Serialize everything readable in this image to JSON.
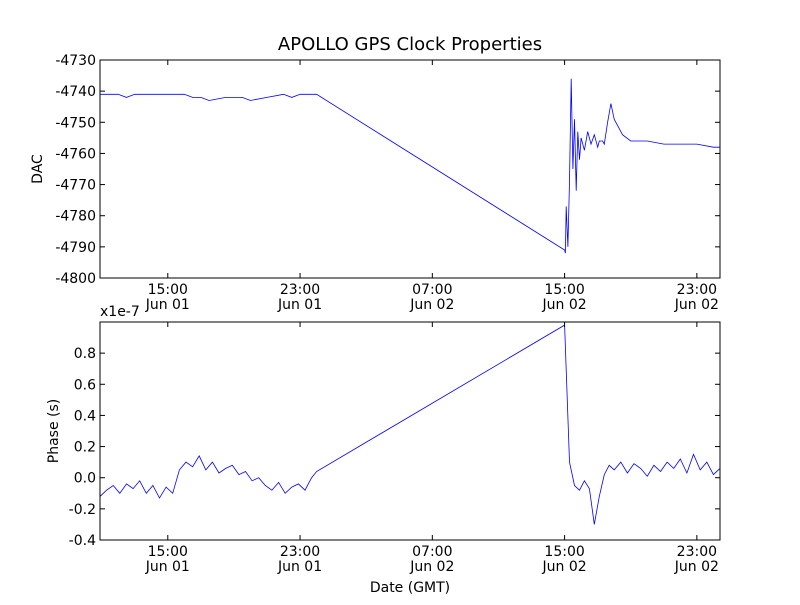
{
  "title": "APOLLO GPS Clock Properties",
  "chart_data": [
    {
      "type": "line",
      "ylabel": "DAC",
      "xlabel": "",
      "ylim": [
        -4800,
        -4730
      ],
      "yticks": [
        -4800,
        -4790,
        -4780,
        -4770,
        -4760,
        -4750,
        -4740,
        -4730
      ],
      "xlim_hours": [
        10.9,
        48.4
      ],
      "xticks": [
        {
          "h": 15,
          "time": "15:00",
          "date": "Jun 01"
        },
        {
          "h": 23,
          "time": "23:00",
          "date": "Jun 01"
        },
        {
          "h": 31,
          "time": "07:00",
          "date": "Jun 02"
        },
        {
          "h": 39,
          "time": "15:00",
          "date": "Jun 02"
        },
        {
          "h": 47,
          "time": "23:00",
          "date": "Jun 02"
        }
      ],
      "x_hours": [
        10.9,
        12.0,
        12.5,
        13.0,
        14.0,
        15.0,
        16.0,
        16.5,
        17.0,
        17.5,
        18.5,
        19.5,
        20.0,
        21.0,
        22.0,
        22.5,
        23.0,
        23.5,
        24.0,
        39.0,
        39.05,
        39.1,
        39.2,
        39.3,
        39.4,
        39.5,
        39.6,
        39.7,
        39.8,
        39.9,
        40.0,
        40.2,
        40.4,
        40.6,
        40.8,
        41.0,
        41.1,
        41.2,
        41.3,
        41.4,
        41.6,
        41.8,
        42.0,
        42.5,
        43.0,
        44.0,
        45.0,
        46.0,
        47.0,
        48.0,
        48.4
      ],
      "y": [
        -4741,
        -4741,
        -4742,
        -4741,
        -4741,
        -4741,
        -4741,
        -4742,
        -4742,
        -4743,
        -4742,
        -4742,
        -4743,
        -4742,
        -4741,
        -4742,
        -4741,
        -4741,
        -4741,
        -4791,
        -4792,
        -4777,
        -4790,
        -4769,
        -4736,
        -4765,
        -4749,
        -4772,
        -4753,
        -4762,
        -4755,
        -4759,
        -4753,
        -4757,
        -4754,
        -4758,
        -4756,
        -4756,
        -4756,
        -4757,
        -4750,
        -4744,
        -4749,
        -4754,
        -4756,
        -4756,
        -4757,
        -4757,
        -4757,
        -4758,
        -4758
      ]
    },
    {
      "type": "line",
      "ylabel": "Phase (s)",
      "xlabel": "Date (GMT)",
      "offset_label": "x1e-7",
      "ylim": [
        -0.4,
        1.0
      ],
      "yticks": [
        -0.4,
        -0.2,
        0.0,
        0.2,
        0.4,
        0.6,
        0.8
      ],
      "xlim_hours": [
        10.9,
        48.4
      ],
      "xticks": [
        {
          "h": 15,
          "time": "15:00",
          "date": "Jun 01"
        },
        {
          "h": 23,
          "time": "23:00",
          "date": "Jun 01"
        },
        {
          "h": 31,
          "time": "07:00",
          "date": "Jun 02"
        },
        {
          "h": 39,
          "time": "15:00",
          "date": "Jun 02"
        },
        {
          "h": 47,
          "time": "23:00",
          "date": "Jun 02"
        }
      ],
      "x_hours": [
        10.9,
        11.3,
        11.7,
        12.1,
        12.5,
        12.9,
        13.3,
        13.7,
        14.1,
        14.5,
        14.9,
        15.3,
        15.7,
        16.1,
        16.5,
        16.9,
        17.3,
        17.7,
        18.1,
        18.5,
        18.9,
        19.3,
        19.7,
        20.1,
        20.5,
        20.9,
        21.3,
        21.7,
        22.1,
        22.5,
        22.9,
        23.3,
        23.7,
        24.0,
        39.0,
        39.3,
        39.6,
        39.9,
        40.2,
        40.5,
        40.8,
        41.1,
        41.4,
        41.7,
        42.0,
        42.4,
        42.8,
        43.2,
        43.6,
        44.0,
        44.4,
        44.8,
        45.2,
        45.6,
        46.0,
        46.4,
        46.8,
        47.2,
        47.6,
        48.0,
        48.4
      ],
      "y": [
        -0.12,
        -0.08,
        -0.05,
        -0.1,
        -0.04,
        -0.07,
        -0.02,
        -0.1,
        -0.05,
        -0.13,
        -0.06,
        -0.1,
        0.05,
        0.1,
        0.07,
        0.14,
        0.05,
        0.1,
        0.03,
        0.06,
        0.08,
        0.02,
        0.04,
        -0.02,
        0.0,
        -0.05,
        -0.08,
        -0.03,
        -0.1,
        -0.06,
        -0.04,
        -0.08,
        0.0,
        0.04,
        0.98,
        0.1,
        -0.05,
        -0.08,
        -0.02,
        -0.07,
        -0.3,
        -0.12,
        0.02,
        0.08,
        0.05,
        0.1,
        0.03,
        0.09,
        0.06,
        0.01,
        0.08,
        0.04,
        0.1,
        0.06,
        0.12,
        0.03,
        0.15,
        0.05,
        0.1,
        0.02,
        0.06
      ]
    }
  ]
}
